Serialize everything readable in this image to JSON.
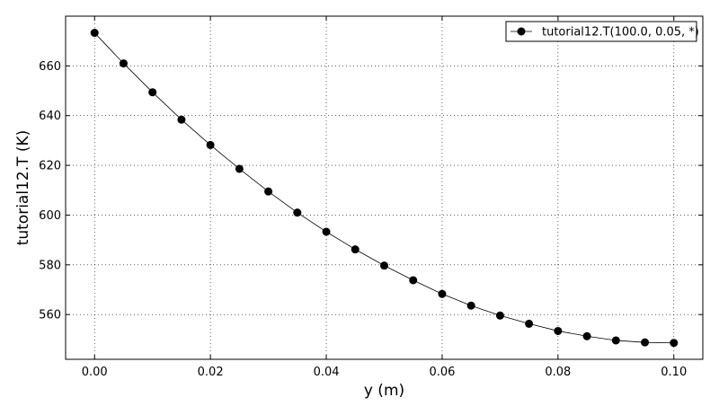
{
  "chart_data": {
    "type": "line",
    "title": "",
    "xlabel": "y (m)",
    "ylabel": "tutorial12.T (K)",
    "xlim": [
      -0.005,
      0.105
    ],
    "ylim": [
      542,
      680
    ],
    "xticks": [
      0.0,
      0.02,
      0.04,
      0.06,
      0.08,
      0.1
    ],
    "xtick_labels": [
      "0.00",
      "0.02",
      "0.04",
      "0.06",
      "0.08",
      "0.10"
    ],
    "yticks": [
      560,
      580,
      600,
      620,
      640,
      660
    ],
    "ytick_labels": [
      "560",
      "580",
      "600",
      "620",
      "640",
      "660"
    ],
    "grid": true,
    "legend_position": "top-right",
    "series": [
      {
        "name": "tutorial12.T(100.0, 0.05, *)",
        "color": "#000000",
        "marker": "circle",
        "x": [
          0.0,
          0.005,
          0.01,
          0.015,
          0.02,
          0.025,
          0.03,
          0.035,
          0.04,
          0.045,
          0.05,
          0.055,
          0.06,
          0.065,
          0.07,
          0.075,
          0.08,
          0.085,
          0.09,
          0.095,
          0.1
        ],
        "y": [
          673.3,
          661.0,
          649.4,
          638.4,
          628.2,
          618.6,
          609.5,
          601.0,
          593.3,
          586.2,
          579.7,
          573.8,
          568.3,
          563.6,
          559.6,
          556.3,
          553.4,
          551.3,
          549.6,
          548.8,
          548.6
        ]
      }
    ]
  }
}
